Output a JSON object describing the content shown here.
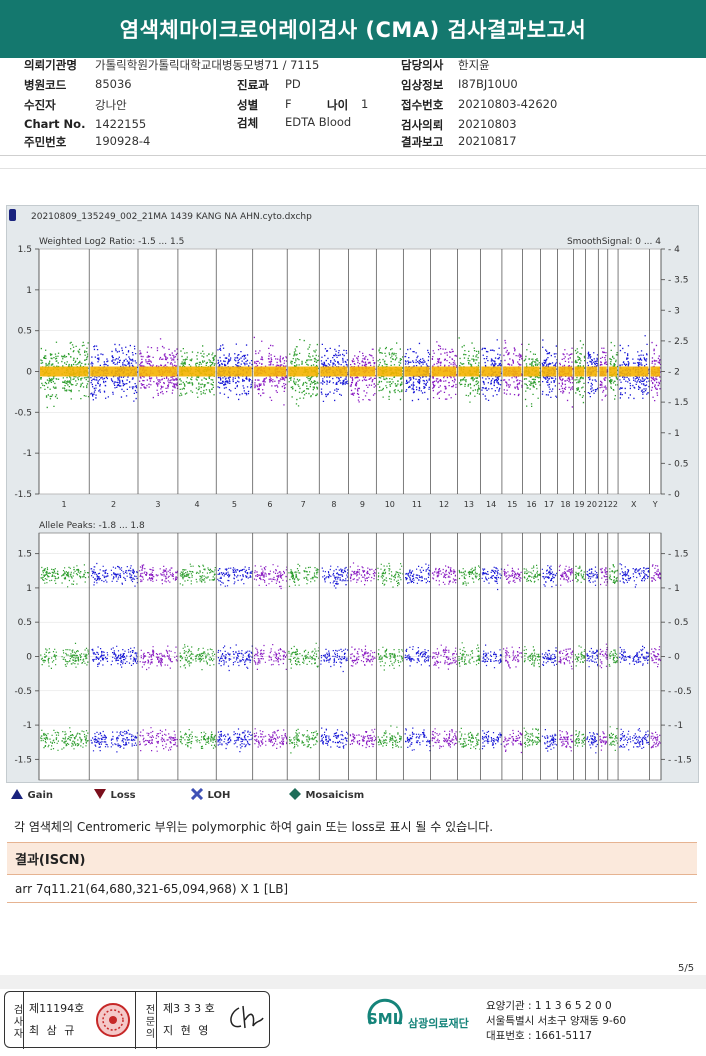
{
  "report": {
    "title": "염색체마이크로어레이검사 (CMA) 검사결과보고서"
  },
  "patient": {
    "fields_left": [
      {
        "label": "의뢰기관명",
        "value": "가톨릭학원가톨릭대학교대병동모병71 / 7115"
      },
      {
        "label": "병원코드",
        "value": "85036"
      },
      {
        "label": "수진자",
        "value": "강나안"
      },
      {
        "label": "Chart No.",
        "value": "1422155"
      },
      {
        "label": "주민번호",
        "value": "190928-4"
      }
    ],
    "dept_label": "진료과",
    "dept_value": "PD",
    "sex_label": "성별",
    "sex_value": "F",
    "age_label": "나이",
    "age_value": "1",
    "specimen_label": "검체",
    "specimen_value": "EDTA Blood",
    "fields_right": [
      {
        "label": "담당의사",
        "value": "한지윤"
      },
      {
        "label": "임상정보",
        "value": "I87BJ10U0"
      },
      {
        "label": "접수번호",
        "value": "20210803-42620"
      },
      {
        "label": "검사의뢰",
        "value": "20210803"
      },
      {
        "label": "결과보고",
        "value": "20210817"
      }
    ]
  },
  "chart_data": {
    "type": "scatter",
    "file_name": "20210809_135249_002_21MA 1439 KANG NA AHN.cyto.dxchp",
    "top_panel": {
      "title": "Weighted Log2 Ratio: -1.5 ... 1.5",
      "right_title": "SmoothSignal: 0 ... 4",
      "ylim": [
        -1.5,
        1.5
      ],
      "left_ticks": [
        "1.5",
        "1",
        "0.5",
        "0",
        "-0.5",
        "-1",
        "-1.5"
      ],
      "right_ticks": [
        "4",
        "3.5",
        "3",
        "2.5",
        "2",
        "1.5",
        "1",
        "0.5",
        "0"
      ]
    },
    "bottom_panel": {
      "title": "Allele Peaks: -1.8 ... 1.8",
      "ylim": [
        -1.8,
        1.8
      ],
      "left_ticks": [
        "1.5",
        "1",
        "0.5",
        "0",
        "-0.5",
        "-1",
        "-1.5"
      ],
      "right_ticks": [
        "1.5",
        "1",
        "0.5",
        "0",
        "-0.5",
        "-1",
        "-1.5"
      ]
    },
    "chromosomes": [
      "1",
      "2",
      "3",
      "4",
      "5",
      "6",
      "7",
      "8",
      "9",
      "10",
      "11",
      "12",
      "13",
      "14",
      "15",
      "16",
      "17",
      "18",
      "19",
      "20",
      "21",
      "22",
      "X",
      "Y"
    ],
    "chrom_sizes": [
      249,
      242,
      198,
      190,
      181,
      171,
      159,
      145,
      138,
      134,
      135,
      133,
      114,
      107,
      102,
      90,
      83,
      80,
      59,
      64,
      47,
      51,
      156,
      57
    ],
    "colors": [
      "#2f9e2f",
      "#1818d6",
      "#8a1cc2"
    ]
  },
  "legend": {
    "gain": "Gain",
    "loss": "Loss",
    "loh": "LOH",
    "mosaicism": "Mosaicism"
  },
  "note": "각 염색체의 Centromeric 부위는 polymorphic 하여 gain 또는 loss로 표시 될 수 있습니다.",
  "result": {
    "header": "결과(ISCN)",
    "value": "arr 7q11.21(64,680,321-65,094,968) X 1 [LB]"
  },
  "page_number": "5/5",
  "sign": {
    "exam_label": "검사자",
    "exam_license": "제11194호",
    "exam_name": "최 삼 규",
    "doctor_label": "전문의",
    "doctor_license": "제3 3 3 호",
    "doctor_name": "지 현 영"
  },
  "footer": {
    "logo_text": "SML",
    "org_name": "삼광의료재단",
    "code": "요양기관 : 1 1 3 6 5 2 0 0",
    "address": "서울특별시 서초구 양재동 9-60",
    "phone": "대표번호 : 1661-5117"
  }
}
